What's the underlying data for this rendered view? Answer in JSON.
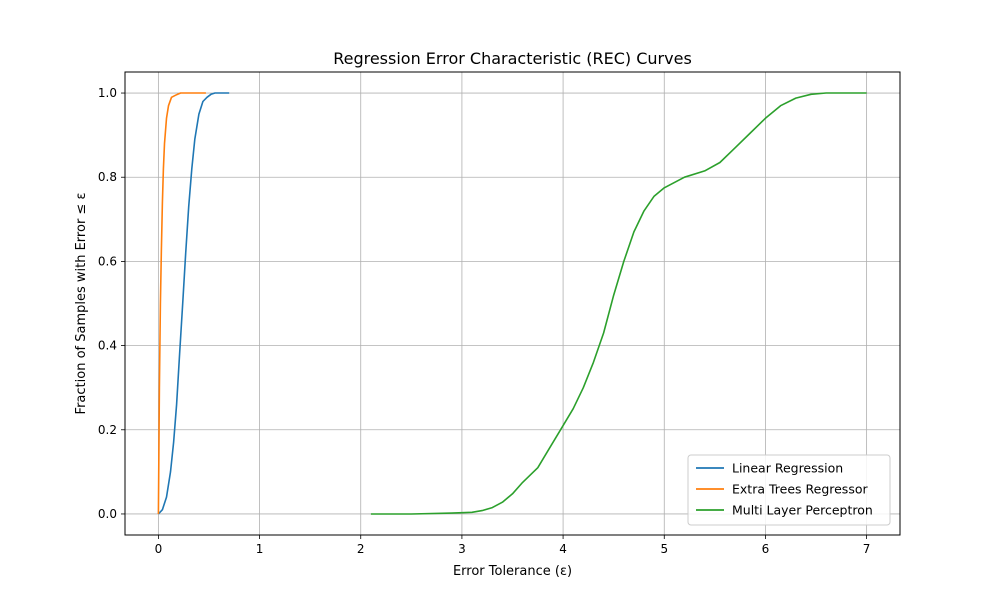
{
  "chart_data": {
    "type": "line",
    "title": "Regression Error Characteristic (REC) Curves",
    "xlabel": "Error Tolerance (ε)",
    "ylabel": "Fraction of Samples with Error ≤ ε",
    "xlim": [
      -0.33,
      7.33
    ],
    "ylim": [
      -0.05,
      1.05
    ],
    "xticks": [
      0,
      1,
      2,
      3,
      4,
      5,
      6,
      7
    ],
    "yticks": [
      0.0,
      0.2,
      0.4,
      0.6,
      0.8,
      1.0
    ],
    "xtick_labels": [
      "0",
      "1",
      "2",
      "3",
      "4",
      "5",
      "6",
      "7"
    ],
    "ytick_labels": [
      "0.0",
      "0.2",
      "0.4",
      "0.6",
      "0.8",
      "1.0"
    ],
    "grid": true,
    "legend_position": "lower-right",
    "series": [
      {
        "name": "Linear Regression",
        "color": "#1f77b4",
        "x": [
          0.0,
          0.04,
          0.08,
          0.12,
          0.15,
          0.18,
          0.21,
          0.24,
          0.27,
          0.3,
          0.33,
          0.36,
          0.4,
          0.44,
          0.48,
          0.52,
          0.56,
          0.6,
          0.65,
          0.7
        ],
        "y": [
          0.0,
          0.01,
          0.04,
          0.1,
          0.17,
          0.26,
          0.38,
          0.5,
          0.62,
          0.73,
          0.82,
          0.89,
          0.95,
          0.98,
          0.99,
          0.997,
          1.0,
          1.0,
          1.0,
          1.0
        ]
      },
      {
        "name": "Extra Trees Regressor",
        "color": "#ff7f0e",
        "x": [
          0.0,
          0.005,
          0.01,
          0.02,
          0.03,
          0.04,
          0.05,
          0.06,
          0.08,
          0.1,
          0.13,
          0.17,
          0.22,
          0.3,
          0.4,
          0.47
        ],
        "y": [
          0.0,
          0.15,
          0.3,
          0.5,
          0.63,
          0.74,
          0.82,
          0.88,
          0.94,
          0.97,
          0.99,
          0.995,
          1.0,
          1.0,
          1.0,
          1.0
        ]
      },
      {
        "name": "Multi Layer Perceptron",
        "color": "#2ca02c",
        "x": [
          2.1,
          2.5,
          2.9,
          3.1,
          3.2,
          3.3,
          3.4,
          3.5,
          3.6,
          3.75,
          3.85,
          4.0,
          4.1,
          4.2,
          4.3,
          4.4,
          4.5,
          4.6,
          4.7,
          4.8,
          4.9,
          5.0,
          5.2,
          5.4,
          5.55,
          5.7,
          5.85,
          6.0,
          6.15,
          6.3,
          6.45,
          6.6,
          6.8,
          7.0
        ],
        "y": [
          0.0,
          0.0,
          0.002,
          0.004,
          0.008,
          0.015,
          0.028,
          0.048,
          0.075,
          0.11,
          0.15,
          0.21,
          0.25,
          0.3,
          0.36,
          0.43,
          0.52,
          0.6,
          0.67,
          0.72,
          0.755,
          0.775,
          0.8,
          0.815,
          0.835,
          0.87,
          0.905,
          0.94,
          0.97,
          0.988,
          0.997,
          1.0,
          1.0,
          1.0
        ]
      }
    ]
  }
}
